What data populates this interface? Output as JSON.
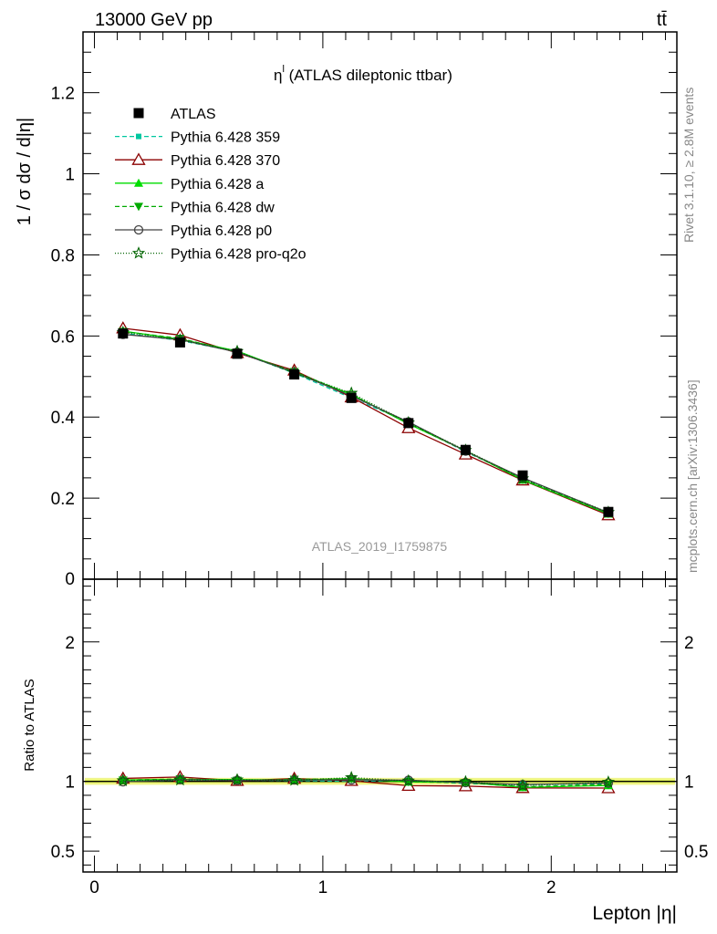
{
  "header": {
    "left": "13000 GeV pp",
    "right": "tt̄"
  },
  "side_labels": {
    "rivet": "Rivet 3.1.10, ≥ 2.8M events",
    "mcplots": "mcplots.cern.ch [arXiv:1306.3436]"
  },
  "colors": {
    "data": "#000000",
    "band_outer": "#f0f58c",
    "band_inner": "#e3f45a"
  },
  "chart_data": [
    {
      "type": "line",
      "title": "η^l (ATLAS dileptonic ttbar)",
      "title_main": "η",
      "title_sup": "l",
      "title_rest": " (ATLAS dileptonic ttbar)",
      "analysis_tag": "ATLAS_2019_I1759875",
      "ylabel": "1 / σ  dσ / d|η|",
      "xlabel": "",
      "xlim": [
        -0.05,
        2.55
      ],
      "ylim": [
        0,
        1.35
      ],
      "x_ticks": [
        0,
        1,
        2
      ],
      "y_ticks": [
        0.2,
        0.4,
        0.6,
        0.8,
        1,
        1.2
      ],
      "y_tick_labels": [
        "0.2",
        "0.4",
        "0.6",
        "0.8",
        "1",
        "1.2"
      ],
      "y_cut_label": "0",
      "x": [
        0.125,
        0.375,
        0.625,
        0.875,
        1.125,
        1.375,
        1.625,
        1.875,
        2.25
      ],
      "legend_position": "top-left",
      "series": [
        {
          "name": "ATLAS",
          "color": "#000000",
          "marker": "square",
          "dash": "none",
          "values": [
            0.606,
            0.584,
            0.556,
            0.505,
            0.447,
            0.385,
            0.319,
            0.256,
            0.166
          ]
        },
        {
          "name": "Pythia 6.428 359",
          "color": "#00c7a0",
          "marker": "square-small",
          "dash": "5,3",
          "values": [
            0.607,
            0.589,
            0.561,
            0.508,
            0.447,
            0.388,
            0.314,
            0.25,
            0.163
          ]
        },
        {
          "name": "Pythia 6.428 370",
          "color": "#8b0000",
          "marker": "triangle-open",
          "dash": "none",
          "values": [
            0.619,
            0.602,
            0.558,
            0.515,
            0.449,
            0.373,
            0.308,
            0.244,
            0.158
          ]
        },
        {
          "name": "Pythia 6.428 a",
          "color": "#00dd00",
          "marker": "triangle",
          "dash": "none",
          "values": [
            0.612,
            0.592,
            0.563,
            0.509,
            0.456,
            0.383,
            0.317,
            0.245,
            0.161
          ]
        },
        {
          "name": "Pythia 6.428 dw",
          "color": "#00aa00",
          "marker": "triangle-down",
          "dash": "5,3",
          "values": [
            0.611,
            0.594,
            0.56,
            0.512,
            0.455,
            0.384,
            0.316,
            0.246,
            0.162
          ]
        },
        {
          "name": "Pythia 6.428 p0",
          "color": "#444444",
          "marker": "circle-open",
          "dash": "none",
          "values": [
            0.604,
            0.591,
            0.56,
            0.51,
            0.452,
            0.388,
            0.316,
            0.25,
            0.164
          ]
        },
        {
          "name": "Pythia 6.428 pro-q2o",
          "color": "#006400",
          "marker": "star",
          "dash": "1,2",
          "values": [
            0.609,
            0.59,
            0.562,
            0.509,
            0.459,
            0.386,
            0.318,
            0.248,
            0.165
          ]
        }
      ]
    },
    {
      "type": "line",
      "ylabel": "Ratio to ATLAS",
      "xlabel": "Lepton |η|",
      "xlim": [
        -0.05,
        2.55
      ],
      "ylim": [
        0.35,
        2.45
      ],
      "x_ticks": [
        0,
        1,
        2
      ],
      "x_tick_labels": [
        "0",
        "1",
        "2"
      ],
      "y_ticks": [
        0.5,
        1,
        2
      ],
      "y_tick_labels": [
        "0.5",
        "1",
        "2"
      ],
      "x": [
        0.125,
        0.375,
        0.625,
        0.875,
        1.125,
        1.375,
        1.625,
        1.875,
        2.25
      ],
      "band": {
        "outer": 0.025,
        "inner": 0.012
      },
      "series": [
        {
          "name": "Pythia 6.428 359",
          "color": "#00c7a0",
          "marker": "square-small",
          "dash": "5,3",
          "values": [
            1.002,
            1.009,
            1.009,
            1.006,
            1.0,
            1.008,
            0.984,
            0.977,
            0.982
          ]
        },
        {
          "name": "Pythia 6.428 370",
          "color": "#8b0000",
          "marker": "triangle-open",
          "dash": "none",
          "values": [
            1.021,
            1.031,
            1.004,
            1.02,
            1.004,
            0.969,
            0.966,
            0.953,
            0.952
          ]
        },
        {
          "name": "Pythia 6.428 a",
          "color": "#00dd00",
          "marker": "triangle",
          "dash": "none",
          "values": [
            1.01,
            1.014,
            1.013,
            1.008,
            1.02,
            0.995,
            0.994,
            0.957,
            0.97
          ]
        },
        {
          "name": "Pythia 6.428 dw",
          "color": "#00aa00",
          "marker": "triangle-down",
          "dash": "5,3",
          "values": [
            1.008,
            1.017,
            1.007,
            1.014,
            1.018,
            0.997,
            0.991,
            0.961,
            0.976
          ]
        },
        {
          "name": "Pythia 6.428 p0",
          "color": "#444444",
          "marker": "circle-open",
          "dash": "none",
          "values": [
            0.997,
            1.012,
            1.007,
            1.01,
            1.011,
            1.008,
            0.991,
            0.977,
            0.988
          ]
        },
        {
          "name": "Pythia 6.428 pro-q2o",
          "color": "#006400",
          "marker": "star",
          "dash": "1,2",
          "values": [
            1.005,
            1.01,
            1.011,
            1.008,
            1.027,
            1.003,
            0.997,
            0.969,
            0.994
          ]
        }
      ]
    }
  ]
}
